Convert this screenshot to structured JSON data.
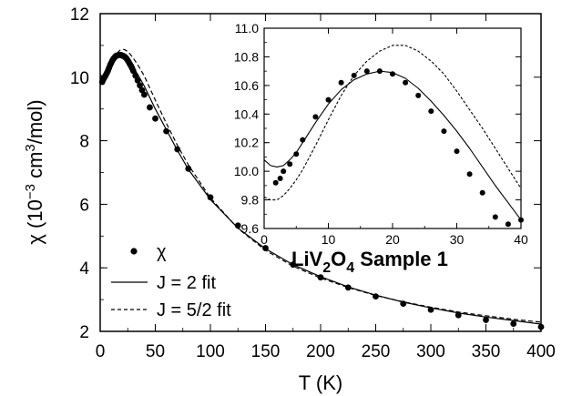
{
  "chart_data": [
    {
      "type": "scatter",
      "xlabel": "T (K)",
      "ylabel": {
        "pre": "χ (10",
        "exp1": "−3",
        "mid": " cm",
        "exp2": "3",
        "post": "/mol)"
      },
      "xlim": [
        0,
        400
      ],
      "ylim": [
        2,
        12
      ],
      "xticks": [
        0,
        50,
        100,
        150,
        200,
        250,
        300,
        350,
        400
      ],
      "yticks": [
        2,
        4,
        6,
        8,
        10,
        12
      ],
      "legend": {
        "position": "bottom-left",
        "entries": [
          {
            "label": "χ",
            "style": "dots"
          },
          {
            "label": "J = 2 fit",
            "style": "solid"
          },
          {
            "label": "J = 5/2 fit",
            "style": "dashed"
          }
        ]
      },
      "series": [
        {
          "name": "χ",
          "style": "dots",
          "x": [
            1.8,
            2.5,
            3,
            4,
            5,
            6,
            7,
            8,
            9,
            10,
            11,
            12,
            13,
            14,
            15,
            16,
            17,
            18,
            19,
            20,
            21,
            22,
            23,
            24,
            25,
            26,
            27,
            28,
            29,
            30,
            32,
            34,
            36,
            38,
            40,
            45,
            50,
            60,
            70,
            80,
            100,
            125,
            150,
            175,
            200,
            225,
            250,
            275,
            300,
            325,
            350,
            375,
            400
          ],
          "y": [
            9.85,
            9.91,
            9.95,
            10.0,
            10.06,
            10.13,
            10.2,
            10.29,
            10.38,
            10.45,
            10.52,
            10.58,
            10.62,
            10.66,
            10.68,
            10.69,
            10.7,
            10.7,
            10.7,
            10.68,
            10.67,
            10.65,
            10.62,
            10.58,
            10.53,
            10.47,
            10.41,
            10.35,
            10.28,
            10.2,
            10.05,
            9.9,
            9.74,
            9.59,
            9.45,
            9.05,
            8.7,
            8.3,
            7.73,
            7.12,
            6.22,
            5.33,
            4.62,
            4.1,
            3.7,
            3.38,
            3.1,
            2.87,
            2.68,
            2.51,
            2.36,
            2.24,
            2.14
          ]
        },
        {
          "name": "J = 2 fit",
          "style": "solid",
          "x": [
            0,
            1,
            2,
            3,
            4,
            5,
            6,
            8,
            10,
            12,
            14,
            16,
            18,
            20,
            22,
            24,
            26,
            28,
            30,
            35,
            40,
            50,
            60,
            70,
            80,
            100,
            125,
            150,
            175,
            200,
            225,
            250,
            275,
            300,
            325,
            350,
            375,
            400
          ],
          "y": [
            10.08,
            10.05,
            10.03,
            10.04,
            10.08,
            10.14,
            10.21,
            10.35,
            10.48,
            10.58,
            10.65,
            10.69,
            10.71,
            10.7,
            10.66,
            10.59,
            10.51,
            10.42,
            10.32,
            10.03,
            9.72,
            9.0,
            8.35,
            7.7,
            7.1,
            6.15,
            5.25,
            4.6,
            4.1,
            3.72,
            3.4,
            3.14,
            2.92,
            2.74,
            2.58,
            2.45,
            2.34,
            2.23
          ]
        },
        {
          "name": "J = 5/2 fit",
          "style": "dashed",
          "x": [
            0,
            1,
            2,
            3,
            4,
            5,
            6,
            8,
            10,
            12,
            14,
            16,
            18,
            20,
            22,
            24,
            26,
            28,
            30,
            35,
            40,
            50,
            60,
            70,
            80,
            100,
            125,
            150,
            175,
            200,
            225,
            250,
            275,
            300,
            325,
            350,
            375,
            400
          ],
          "y": [
            9.82,
            9.8,
            9.8,
            9.83,
            9.88,
            9.95,
            10.03,
            10.2,
            10.38,
            10.55,
            10.68,
            10.78,
            10.85,
            10.88,
            10.87,
            10.83,
            10.77,
            10.69,
            10.6,
            10.34,
            10.04,
            9.28,
            8.55,
            7.86,
            7.24,
            6.2,
            5.24,
            4.55,
            4.05,
            3.68,
            3.38,
            3.13,
            2.93,
            2.76,
            2.61,
            2.49,
            2.38,
            2.29
          ]
        }
      ]
    },
    {
      "type": "scatter",
      "inset": true,
      "xlim": [
        0,
        40
      ],
      "ylim": [
        9.6,
        11.0
      ],
      "xticks": [
        0,
        10,
        20,
        30,
        40
      ],
      "yticks": [
        9.6,
        9.8,
        10.0,
        10.2,
        10.4,
        10.6,
        10.8,
        11.0
      ],
      "annotation": {
        "pre": "LiV",
        "sub1": "2",
        "mid": "O",
        "sub2": "4",
        "post": " Sample 1"
      },
      "series": [
        {
          "name": "χ",
          "style": "dots",
          "x": [
            1.8,
            2.5,
            3,
            4,
            5,
            6,
            8,
            10,
            12,
            14,
            16,
            18,
            20,
            22,
            24,
            26,
            28,
            30,
            32,
            34,
            36,
            38,
            40
          ],
          "y": [
            9.92,
            9.95,
            10.0,
            10.05,
            10.12,
            10.22,
            10.38,
            10.5,
            10.62,
            10.67,
            10.7,
            10.7,
            10.68,
            10.62,
            10.53,
            10.42,
            10.28,
            10.14,
            9.98,
            9.85,
            9.68,
            9.63,
            9.66
          ]
        },
        {
          "name": "J = 2 fit",
          "style": "solid",
          "x": [
            0,
            1,
            2,
            3,
            4,
            5,
            6,
            8,
            10,
            12,
            14,
            16,
            18,
            20,
            22,
            24,
            26,
            28,
            30,
            32,
            34,
            36,
            38,
            40
          ],
          "y": [
            10.08,
            10.04,
            10.03,
            10.04,
            10.08,
            10.13,
            10.2,
            10.34,
            10.47,
            10.57,
            10.64,
            10.68,
            10.7,
            10.69,
            10.65,
            10.58,
            10.49,
            10.39,
            10.28,
            10.16,
            10.03,
            9.9,
            9.78,
            9.66
          ]
        },
        {
          "name": "J = 5/2 fit",
          "style": "dashed",
          "x": [
            0,
            1,
            2,
            3,
            4,
            5,
            6,
            8,
            10,
            12,
            14,
            16,
            18,
            20,
            22,
            24,
            26,
            28,
            30,
            32,
            34,
            36,
            38,
            40
          ],
          "y": [
            9.82,
            9.8,
            9.8,
            9.83,
            9.88,
            9.94,
            10.01,
            10.18,
            10.36,
            10.53,
            10.67,
            10.77,
            10.84,
            10.88,
            10.88,
            10.84,
            10.77,
            10.68,
            10.56,
            10.43,
            10.3,
            10.16,
            10.02,
            9.88
          ]
        }
      ]
    }
  ]
}
